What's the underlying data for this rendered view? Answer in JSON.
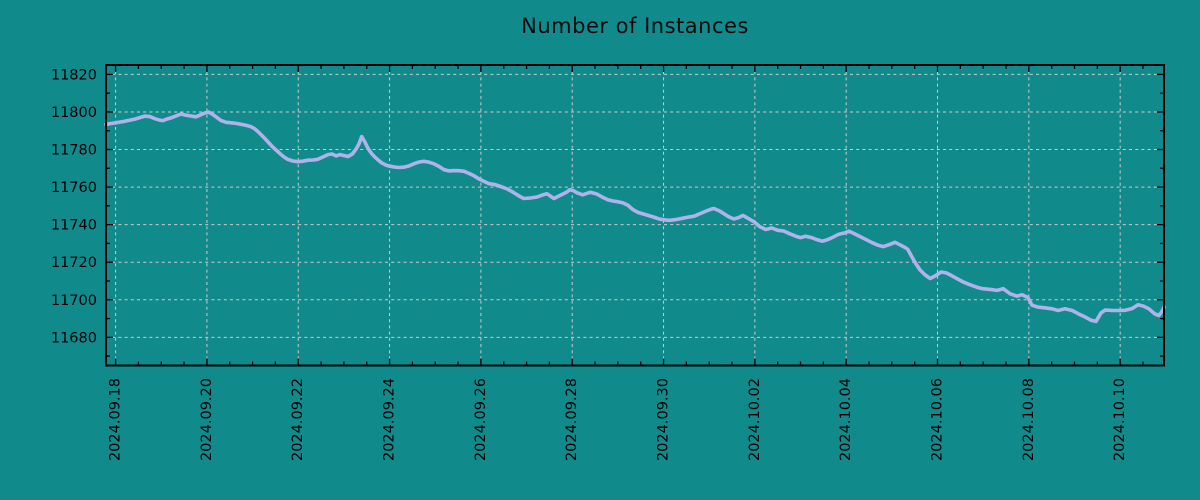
{
  "colors": {
    "background": "#118a8c",
    "line": "#b2b2eb",
    "grid": "#cccccc",
    "axis": "#000000",
    "text": "#000000",
    "title_text": "#0a0a0a"
  },
  "chart_data": {
    "type": "line",
    "title": "Number of Instances",
    "legend": false,
    "grid": true,
    "x_axis": {
      "unit": "days since 2024.09.18",
      "range": [
        -0.21,
        22.96
      ],
      "major_tick_positions": [
        0,
        2,
        4,
        6,
        8,
        10,
        12,
        14,
        16,
        18,
        20,
        22
      ],
      "major_tick_labels": [
        "2024.09.18",
        "2024.09.20",
        "2024.09.22",
        "2024.09.24",
        "2024.09.26",
        "2024.09.28",
        "2024.09.30",
        "2024.10.02",
        "2024.10.04",
        "2024.10.06",
        "2024.10.08",
        "2024.10.10"
      ],
      "minor_tick_interval": 0.5,
      "label_rotation_deg": -90
    },
    "y_axis": {
      "range": [
        11665,
        11825
      ],
      "major_tick_positions": [
        11680,
        11700,
        11720,
        11740,
        11760,
        11780,
        11800,
        11820
      ],
      "major_tick_labels": [
        "11680",
        "11700",
        "11720",
        "11740",
        "11760",
        "11780",
        "11800",
        "11820"
      ],
      "minor_tick_interval": 10
    },
    "series": [
      {
        "name": "instances",
        "points": [
          [
            -0.21,
            11793.3
          ],
          [
            -0.12,
            11793.8
          ],
          [
            0,
            11794.2
          ],
          [
            0.09,
            11794.6
          ],
          [
            0.2,
            11795.0
          ],
          [
            0.31,
            11795.6
          ],
          [
            0.42,
            11796.2
          ],
          [
            0.53,
            11797.0
          ],
          [
            0.64,
            11797.8
          ],
          [
            0.75,
            11797.5
          ],
          [
            0.86,
            11796.4
          ],
          [
            0.97,
            11795.6
          ],
          [
            1.04,
            11795.4
          ],
          [
            1.12,
            11796.2
          ],
          [
            1.23,
            11797.0
          ],
          [
            1.34,
            11798.0
          ],
          [
            1.43,
            11798.9
          ],
          [
            1.52,
            11798.4
          ],
          [
            1.63,
            11797.9
          ],
          [
            1.76,
            11797.4
          ],
          [
            1.85,
            11798.3
          ],
          [
            1.96,
            11799.5
          ],
          [
            2.04,
            11799.9
          ],
          [
            2.13,
            11798.6
          ],
          [
            2.22,
            11797.0
          ],
          [
            2.31,
            11795.4
          ],
          [
            2.42,
            11794.5
          ],
          [
            2.53,
            11794.2
          ],
          [
            2.64,
            11793.9
          ],
          [
            2.74,
            11793.5
          ],
          [
            2.85,
            11792.9
          ],
          [
            2.96,
            11792.2
          ],
          [
            3.05,
            11791.0
          ],
          [
            3.14,
            11789.0
          ],
          [
            3.23,
            11786.8
          ],
          [
            3.34,
            11784.0
          ],
          [
            3.42,
            11781.8
          ],
          [
            3.51,
            11779.8
          ],
          [
            3.6,
            11777.8
          ],
          [
            3.69,
            11776.0
          ],
          [
            3.77,
            11774.8
          ],
          [
            3.88,
            11773.9
          ],
          [
            3.99,
            11773.5
          ],
          [
            4.1,
            11773.8
          ],
          [
            4.21,
            11774.3
          ],
          [
            4.32,
            11774.4
          ],
          [
            4.43,
            11774.8
          ],
          [
            4.54,
            11776.0
          ],
          [
            4.65,
            11777.3
          ],
          [
            4.74,
            11777.6
          ],
          [
            4.83,
            11776.6
          ],
          [
            4.91,
            11777.3
          ],
          [
            5.0,
            11776.8
          ],
          [
            5.09,
            11776.3
          ],
          [
            5.18,
            11777.5
          ],
          [
            5.26,
            11780.0
          ],
          [
            5.33,
            11783.0
          ],
          [
            5.39,
            11786.9
          ],
          [
            5.46,
            11784.0
          ],
          [
            5.53,
            11780.5
          ],
          [
            5.61,
            11777.7
          ],
          [
            5.68,
            11775.9
          ],
          [
            5.77,
            11774.0
          ],
          [
            5.83,
            11772.9
          ],
          [
            5.92,
            11771.7
          ],
          [
            6.01,
            11771.1
          ],
          [
            6.1,
            11770.7
          ],
          [
            6.21,
            11770.4
          ],
          [
            6.31,
            11770.6
          ],
          [
            6.42,
            11771.2
          ],
          [
            6.53,
            11772.4
          ],
          [
            6.64,
            11773.3
          ],
          [
            6.75,
            11773.7
          ],
          [
            6.86,
            11773.3
          ],
          [
            6.97,
            11772.4
          ],
          [
            7.08,
            11771.0
          ],
          [
            7.19,
            11769.3
          ],
          [
            7.3,
            11768.6
          ],
          [
            7.41,
            11768.8
          ],
          [
            7.52,
            11768.7
          ],
          [
            7.63,
            11768.4
          ],
          [
            7.74,
            11767.3
          ],
          [
            7.85,
            11766.0
          ],
          [
            7.96,
            11764.3
          ],
          [
            8.07,
            11763.0
          ],
          [
            8.18,
            11761.8
          ],
          [
            8.29,
            11761.4
          ],
          [
            8.4,
            11760.6
          ],
          [
            8.57,
            11759.1
          ],
          [
            8.7,
            11757.3
          ],
          [
            8.86,
            11754.9
          ],
          [
            8.94,
            11753.9
          ],
          [
            9.08,
            11754.2
          ],
          [
            9.23,
            11754.7
          ],
          [
            9.36,
            11755.9
          ],
          [
            9.45,
            11756.4
          ],
          [
            9.6,
            11753.9
          ],
          [
            9.73,
            11755.5
          ],
          [
            9.88,
            11757.3
          ],
          [
            9.95,
            11758.6
          ],
          [
            10.02,
            11758.2
          ],
          [
            10.1,
            11757.0
          ],
          [
            10.23,
            11755.9
          ],
          [
            10.39,
            11757.2
          ],
          [
            10.54,
            11756.3
          ],
          [
            10.67,
            11754.5
          ],
          [
            10.78,
            11753.2
          ],
          [
            10.89,
            11752.6
          ],
          [
            11.0,
            11752.2
          ],
          [
            11.11,
            11751.6
          ],
          [
            11.22,
            11750.3
          ],
          [
            11.33,
            11748.0
          ],
          [
            11.44,
            11746.5
          ],
          [
            11.55,
            11745.7
          ],
          [
            11.68,
            11744.8
          ],
          [
            11.81,
            11743.8
          ],
          [
            11.92,
            11742.9
          ],
          [
            12.03,
            11742.5
          ],
          [
            12.14,
            11742.3
          ],
          [
            12.27,
            11742.7
          ],
          [
            12.41,
            11743.4
          ],
          [
            12.54,
            11744.0
          ],
          [
            12.67,
            11744.5
          ],
          [
            12.8,
            11745.9
          ],
          [
            12.93,
            11747.2
          ],
          [
            13.06,
            11748.4
          ],
          [
            13.1,
            11748.6
          ],
          [
            13.21,
            11747.5
          ],
          [
            13.32,
            11745.9
          ],
          [
            13.43,
            11744.2
          ],
          [
            13.54,
            11743.0
          ],
          [
            13.65,
            11743.8
          ],
          [
            13.74,
            11744.9
          ],
          [
            13.85,
            11743.4
          ],
          [
            13.98,
            11741.5
          ],
          [
            14.11,
            11738.9
          ],
          [
            14.24,
            11737.4
          ],
          [
            14.37,
            11738.2
          ],
          [
            14.5,
            11737.0
          ],
          [
            14.63,
            11736.6
          ],
          [
            14.76,
            11735.2
          ],
          [
            14.89,
            11733.9
          ],
          [
            15.0,
            11733.1
          ],
          [
            15.11,
            11733.8
          ],
          [
            15.24,
            11733.1
          ],
          [
            15.35,
            11732.1
          ],
          [
            15.47,
            11731.2
          ],
          [
            15.58,
            11731.9
          ],
          [
            15.71,
            11733.3
          ],
          [
            15.84,
            11734.9
          ],
          [
            15.97,
            11735.6
          ],
          [
            16.06,
            11736.5
          ],
          [
            16.17,
            11735.3
          ],
          [
            16.3,
            11733.7
          ],
          [
            16.44,
            11732.0
          ],
          [
            16.57,
            11730.4
          ],
          [
            16.7,
            11729.0
          ],
          [
            16.81,
            11728.3
          ],
          [
            16.94,
            11729.3
          ],
          [
            17.07,
            11730.6
          ],
          [
            17.2,
            11729.0
          ],
          [
            17.31,
            11727.5
          ],
          [
            17.35,
            11726.8
          ],
          [
            17.44,
            11722.8
          ],
          [
            17.53,
            11719.0
          ],
          [
            17.62,
            11715.8
          ],
          [
            17.73,
            11713.2
          ],
          [
            17.84,
            11711.3
          ],
          [
            17.95,
            11712.7
          ],
          [
            18.08,
            11714.8
          ],
          [
            18.19,
            11714.3
          ],
          [
            18.3,
            11713.0
          ],
          [
            18.43,
            11711.2
          ],
          [
            18.56,
            11709.5
          ],
          [
            18.71,
            11708.0
          ],
          [
            18.86,
            11706.7
          ],
          [
            18.99,
            11705.9
          ],
          [
            19.15,
            11705.5
          ],
          [
            19.3,
            11705.0
          ],
          [
            19.44,
            11705.9
          ],
          [
            19.59,
            11703.2
          ],
          [
            19.74,
            11701.9
          ],
          [
            19.85,
            11702.7
          ],
          [
            19.98,
            11701.2
          ],
          [
            20.07,
            11697.1
          ],
          [
            20.2,
            11696.1
          ],
          [
            20.35,
            11695.7
          ],
          [
            20.51,
            11695.2
          ],
          [
            20.64,
            11694.3
          ],
          [
            20.79,
            11695.2
          ],
          [
            20.95,
            11694.3
          ],
          [
            21.08,
            11692.6
          ],
          [
            21.23,
            11690.9
          ],
          [
            21.36,
            11689.1
          ],
          [
            21.47,
            11688.5
          ],
          [
            21.58,
            11693.0
          ],
          [
            21.67,
            11694.5
          ],
          [
            21.85,
            11694.3
          ],
          [
            21.98,
            11694.3
          ],
          [
            22.11,
            11694.4
          ],
          [
            22.26,
            11695.3
          ],
          [
            22.39,
            11697.3
          ],
          [
            22.52,
            11696.5
          ],
          [
            22.63,
            11695.2
          ],
          [
            22.76,
            11692.4
          ],
          [
            22.85,
            11691.6
          ],
          [
            22.92,
            11694.0
          ],
          [
            22.96,
            11696.0
          ]
        ]
      }
    ]
  }
}
